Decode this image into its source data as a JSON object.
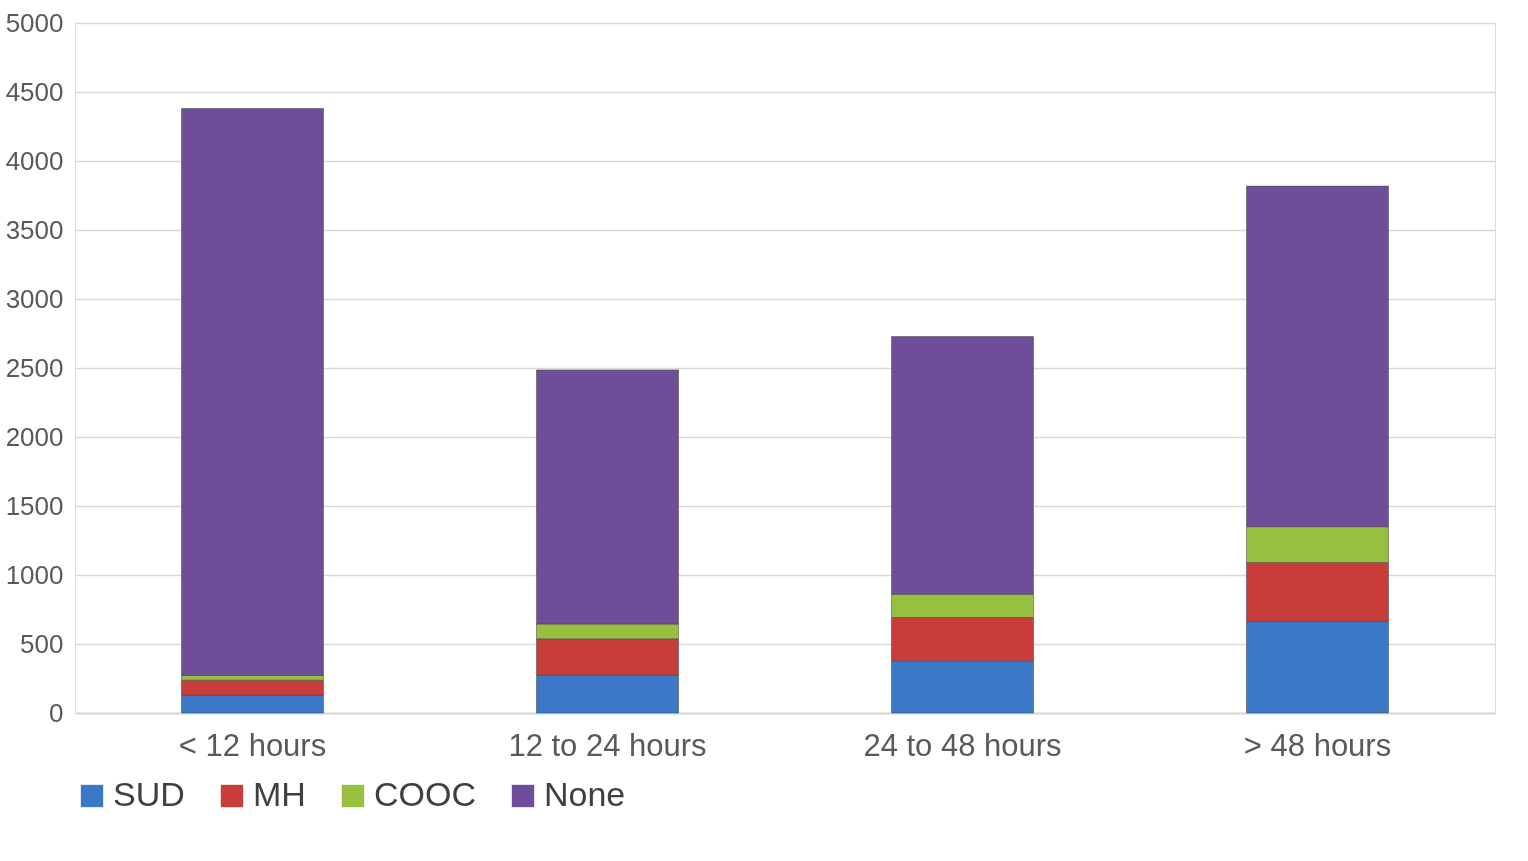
{
  "chart_data": {
    "type": "bar",
    "stacked": true,
    "categories": [
      "< 12 hours",
      "12 to 24 hours",
      "24 to 48 hours",
      "> 48 hours"
    ],
    "series": [
      {
        "name": "SUD",
        "color": "#3b78c8",
        "values": [
          128,
          276,
          378,
          664
        ]
      },
      {
        "name": "MH",
        "color": "#c83c3c",
        "values": [
          110,
          262,
          314,
          427
        ]
      },
      {
        "name": "COOC",
        "color": "#98c040",
        "values": [
          34,
          107,
          168,
          259
        ]
      },
      {
        "name": "None",
        "color": "#6e4e98",
        "values": [
          4108,
          1841,
          1868,
          2468
        ]
      }
    ],
    "ylim": [
      0,
      5000
    ],
    "yticks": [
      0,
      500,
      1000,
      1500,
      2000,
      2500,
      3000,
      3500,
      4000,
      4500,
      5000
    ],
    "grid": "y",
    "legend": "bottom"
  }
}
